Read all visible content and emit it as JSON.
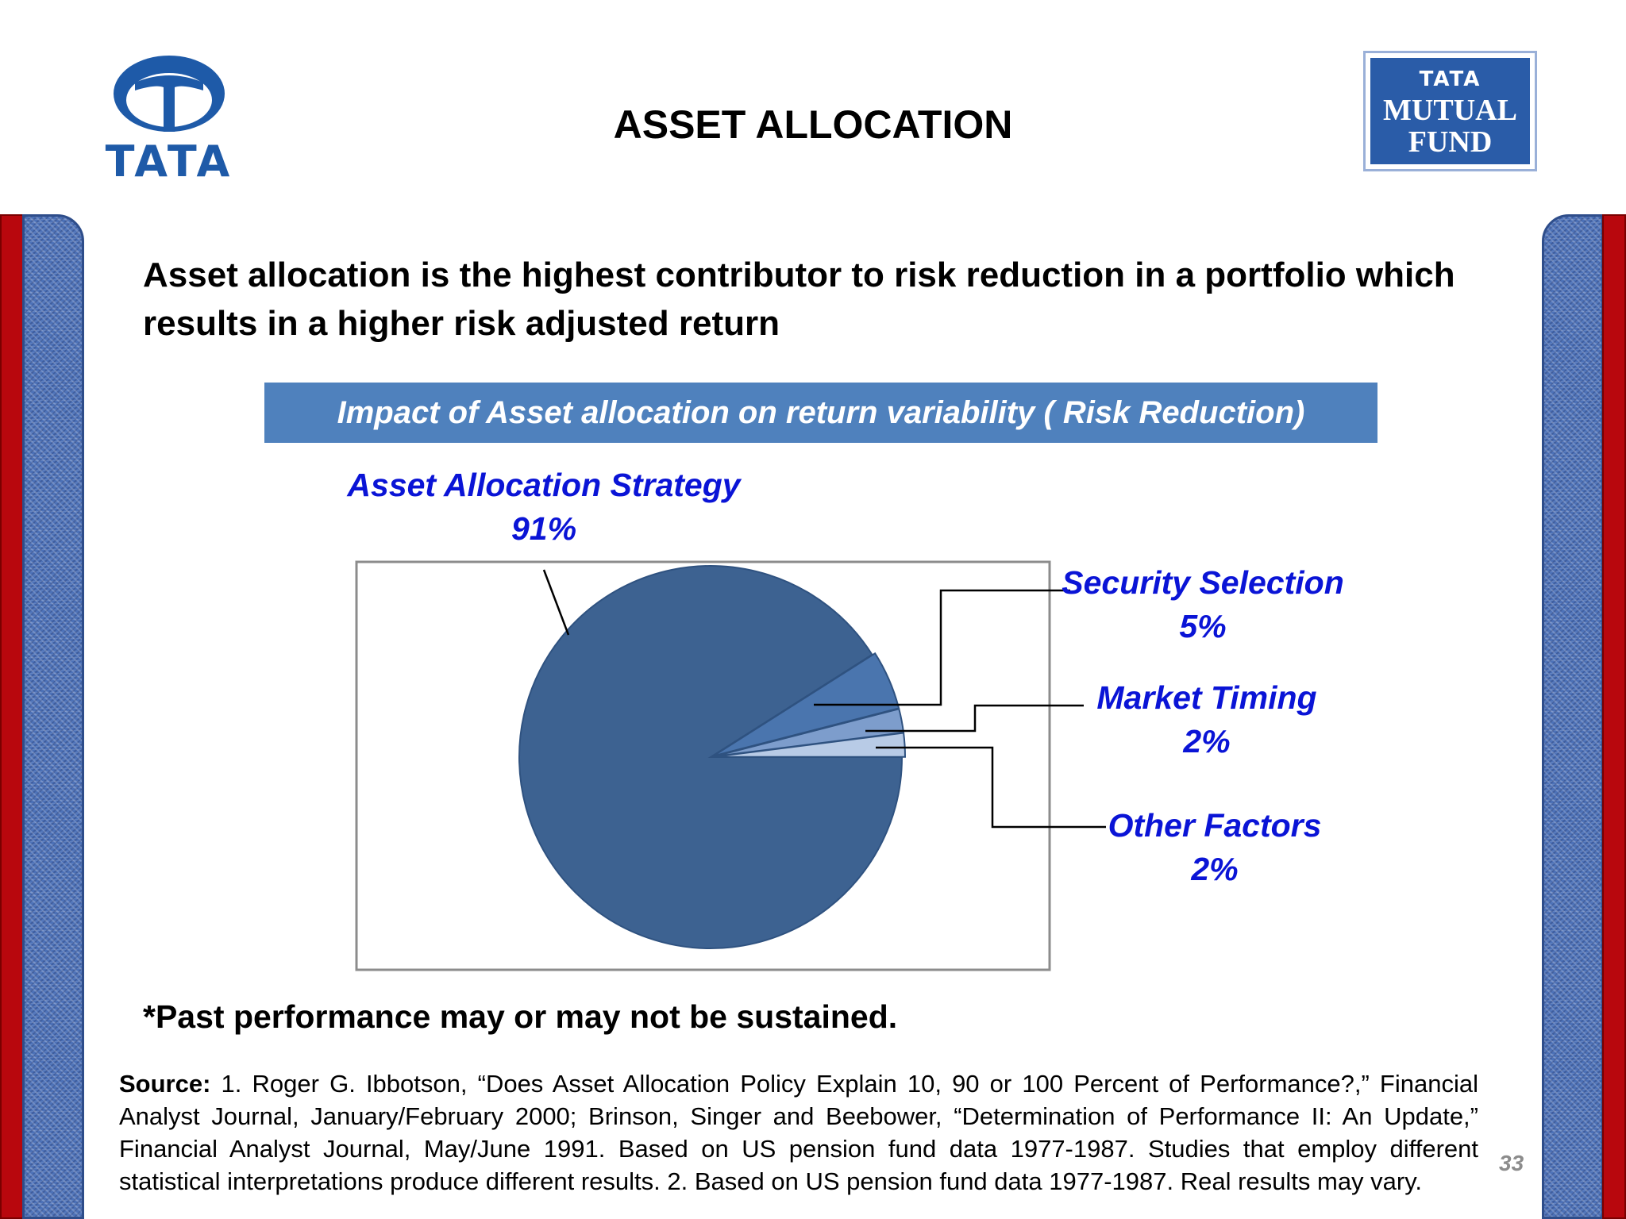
{
  "header": {
    "title": "ASSET ALLOCATION",
    "left_logo_text": "TATA",
    "right_logo": {
      "line1": "TATA",
      "line2": "MUTUAL",
      "line3": "FUND"
    }
  },
  "headline": "Asset allocation is the highest contributor to risk reduction in a portfolio which results in a higher risk adjusted return",
  "chart_data": {
    "type": "pie",
    "title": "Impact of Asset allocation on return variability ( Risk Reduction)",
    "slices": [
      {
        "label": "Asset Allocation Strategy",
        "value": 91,
        "display": "91%",
        "color": "#3d6291"
      },
      {
        "label": "Security Selection",
        "value": 5,
        "display": "5%",
        "color": "#4a75ae"
      },
      {
        "label": "Market Timing",
        "value": 2,
        "display": "2%",
        "color": "#7d9dcc"
      },
      {
        "label": "Other Factors",
        "value": 2,
        "display": "2%",
        "color": "#b8cbe6"
      }
    ],
    "legend": "none"
  },
  "disclaimer": "*Past performance may or may not be sustained.",
  "source": {
    "label": "Source:",
    "text": " 1.  Roger G. Ibbotson, “Does Asset Allocation Policy Explain 10, 90 or 100 Percent of Performance?,” Financial Analyst Journal, January/February 2000; Brinson, Singer and Beebower, “Determination of Performance II: An Update,” Financial Analyst Journal, May/June 1991.  Based on US pension fund data 1977-1987.  Studies that employ different statistical interpretations produce different results.  2. Based on US pension fund data 1977-1987.  Real results may vary."
  },
  "page_number": "33",
  "colors": {
    "accent_blue": "#4f81bd",
    "label_blue": "#0a14d6",
    "band_red": "#b8070d"
  }
}
